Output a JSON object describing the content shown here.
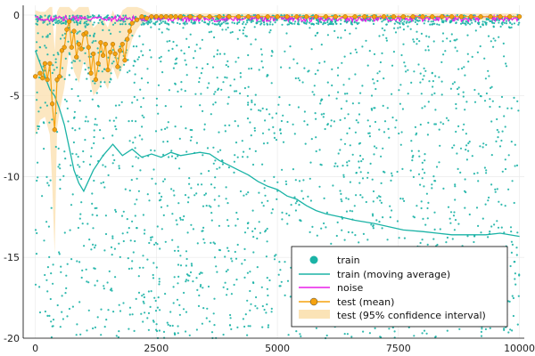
{
  "chart_data": {
    "type": "scatter",
    "title": "",
    "xlabel": "",
    "ylabel": "",
    "xlim": [
      -250,
      10100
    ],
    "ylim": [
      -20,
      0.6
    ],
    "grid": true,
    "legend_position": "bottom-right",
    "x_ticks": [
      {
        "value": 0,
        "label": "0"
      },
      {
        "value": 2500,
        "label": "2500"
      },
      {
        "value": 5000,
        "label": "5000"
      },
      {
        "value": 7500,
        "label": "7500"
      },
      {
        "value": 10000,
        "label": "10000"
      }
    ],
    "y_ticks": [
      {
        "value": 0,
        "label": "0"
      },
      {
        "value": -5,
        "label": "-5"
      },
      {
        "value": -10,
        "label": "-10"
      },
      {
        "value": -15,
        "label": "-15"
      },
      {
        "value": -20,
        "label": "-20"
      }
    ],
    "series": [
      {
        "name": "train",
        "kind": "scatter",
        "color": "#1bb3a6",
        "description_level_ranges": [
          {
            "x_from": 0,
            "x_to": 10000,
            "y_from": -20,
            "y_to": 0
          }
        ]
      },
      {
        "name": "train (moving average)",
        "kind": "line",
        "color": "#1bb3a6",
        "x": [
          0,
          100,
          200,
          300,
          400,
          500,
          600,
          700,
          800,
          900,
          1000,
          1200,
          1400,
          1600,
          1800,
          2000,
          2200,
          2400,
          2600,
          2800,
          3000,
          3200,
          3400,
          3600,
          3800,
          4000,
          4200,
          4400,
          4600,
          4800,
          5000,
          5200,
          5400,
          5600,
          5800,
          6000,
          6300,
          6600,
          7000,
          7300,
          7600,
          8000,
          8300,
          8600,
          9000,
          9300,
          9600,
          10000
        ],
        "y": [
          -2.2,
          -3.0,
          -3.8,
          -4.6,
          -5.0,
          -5.8,
          -6.8,
          -8.2,
          -9.6,
          -10.4,
          -10.9,
          -9.6,
          -8.7,
          -8.0,
          -8.7,
          -8.3,
          -8.8,
          -8.6,
          -8.8,
          -8.5,
          -8.7,
          -8.6,
          -8.5,
          -8.6,
          -9.0,
          -9.3,
          -9.6,
          -9.9,
          -10.3,
          -10.6,
          -10.8,
          -11.2,
          -11.4,
          -11.8,
          -12.1,
          -12.3,
          -12.5,
          -12.7,
          -12.9,
          -13.1,
          -13.3,
          -13.4,
          -13.5,
          -13.6,
          -13.6,
          -13.6,
          -13.5,
          -13.7
        ]
      },
      {
        "name": "noise",
        "kind": "line",
        "color": "#e81ee8",
        "x": [
          0,
          500,
          1000,
          1500,
          2000,
          2500,
          3000,
          3500,
          4000,
          4500,
          5000,
          5500,
          6000,
          6500,
          7000,
          7500,
          8000,
          8500,
          9000,
          9500,
          10000
        ],
        "y": [
          -0.1,
          -0.2,
          -0.1,
          -0.2,
          -0.15,
          -0.1,
          -0.15,
          -0.1,
          -0.12,
          -0.1,
          -0.12,
          -0.1,
          -0.12,
          -0.1,
          -0.12,
          -0.1,
          -0.12,
          -0.1,
          -0.12,
          -0.1,
          -0.1
        ]
      },
      {
        "name": "test (mean)",
        "kind": "line+markers",
        "color": "#f5a20f",
        "x": [
          0,
          100,
          150,
          200,
          250,
          300,
          350,
          400,
          450,
          500,
          550,
          600,
          650,
          700,
          750,
          800,
          850,
          900,
          950,
          1000,
          1050,
          1100,
          1150,
          1200,
          1250,
          1300,
          1350,
          1400,
          1450,
          1500,
          1550,
          1600,
          1650,
          1700,
          1750,
          1800,
          1850,
          1900,
          1950,
          2000,
          2100,
          2200,
          2300,
          2400,
          2500,
          2600,
          2700,
          2800,
          2900,
          3000,
          3200,
          3400,
          3600,
          3800,
          4000,
          4200,
          4400,
          4600,
          4800,
          5000,
          5200,
          5400,
          5600,
          5800,
          6000,
          6200,
          6400,
          6600,
          6800,
          7000,
          7200,
          7400,
          7600,
          7800,
          8000,
          8200,
          8400,
          8600,
          8800,
          9000,
          9200,
          9400,
          9600,
          9800,
          10000
        ],
        "y": [
          -3.8,
          -3.6,
          -3.9,
          -3.0,
          -4.0,
          -3.0,
          -5.5,
          -7.1,
          -4.0,
          -3.8,
          -2.2,
          -2.0,
          -0.9,
          -0.4,
          -2.0,
          -1.0,
          -2.6,
          -1.8,
          -2.1,
          -1.2,
          -1.1,
          -2.0,
          -3.6,
          -2.4,
          -4.0,
          -3.0,
          -1.7,
          -2.5,
          -1.8,
          -3.4,
          -2.3,
          -1.8,
          -2.4,
          -3.2,
          -2.2,
          -1.8,
          -2.8,
          -1.5,
          -1.0,
          -0.5,
          -0.3,
          -0.1,
          -0.2,
          -0.1,
          -0.1,
          -0.1,
          -0.1,
          -0.1,
          -0.1,
          -0.1,
          -0.1,
          -0.1,
          -0.1,
          -0.1,
          -0.1,
          -0.1,
          -0.1,
          -0.1,
          -0.1,
          -0.1,
          -0.1,
          -0.1,
          -0.1,
          -0.1,
          -0.1,
          -0.1,
          -0.1,
          -0.1,
          -0.1,
          -0.1,
          -0.1,
          -0.1,
          -0.1,
          -0.1,
          -0.1,
          -0.1,
          -0.1,
          -0.1,
          -0.1,
          -0.1,
          -0.1,
          -0.1,
          -0.1,
          -0.1,
          -0.1
        ]
      },
      {
        "name": "test (95% confidence interval)",
        "kind": "band",
        "color": "#fbe3b6",
        "x": [
          0,
          100,
          200,
          300,
          350,
          400,
          450,
          500,
          600,
          700,
          800,
          900,
          1000,
          1100,
          1200,
          1300,
          1400,
          1500,
          1600,
          1700,
          1800,
          1900,
          2000,
          2100,
          2200,
          2300,
          2400,
          2500,
          10000
        ],
        "lower": [
          -7.5,
          -6.5,
          -6.3,
          -7.4,
          -10.5,
          -14.8,
          -7.0,
          -6.0,
          -4.5,
          -2.2,
          -3.5,
          -4.2,
          -2.8,
          -3.5,
          -5.0,
          -4.6,
          -4.0,
          -4.6,
          -3.2,
          -4.0,
          -3.2,
          -2.6,
          -1.5,
          -0.9,
          -0.5,
          -0.4,
          -0.3,
          -0.3,
          -0.3
        ],
        "upper": [
          0.3,
          0.2,
          0.2,
          0.5,
          0.5,
          -2.2,
          0.2,
          0.5,
          0.5,
          0.5,
          0.2,
          0.5,
          0.5,
          0.5,
          -0.8,
          -0.5,
          -0.2,
          -0.8,
          0.3,
          -0.5,
          0.3,
          0.5,
          0.5,
          0.5,
          0.4,
          0.2,
          0.1,
          0.1,
          0.1
        ]
      }
    ]
  }
}
